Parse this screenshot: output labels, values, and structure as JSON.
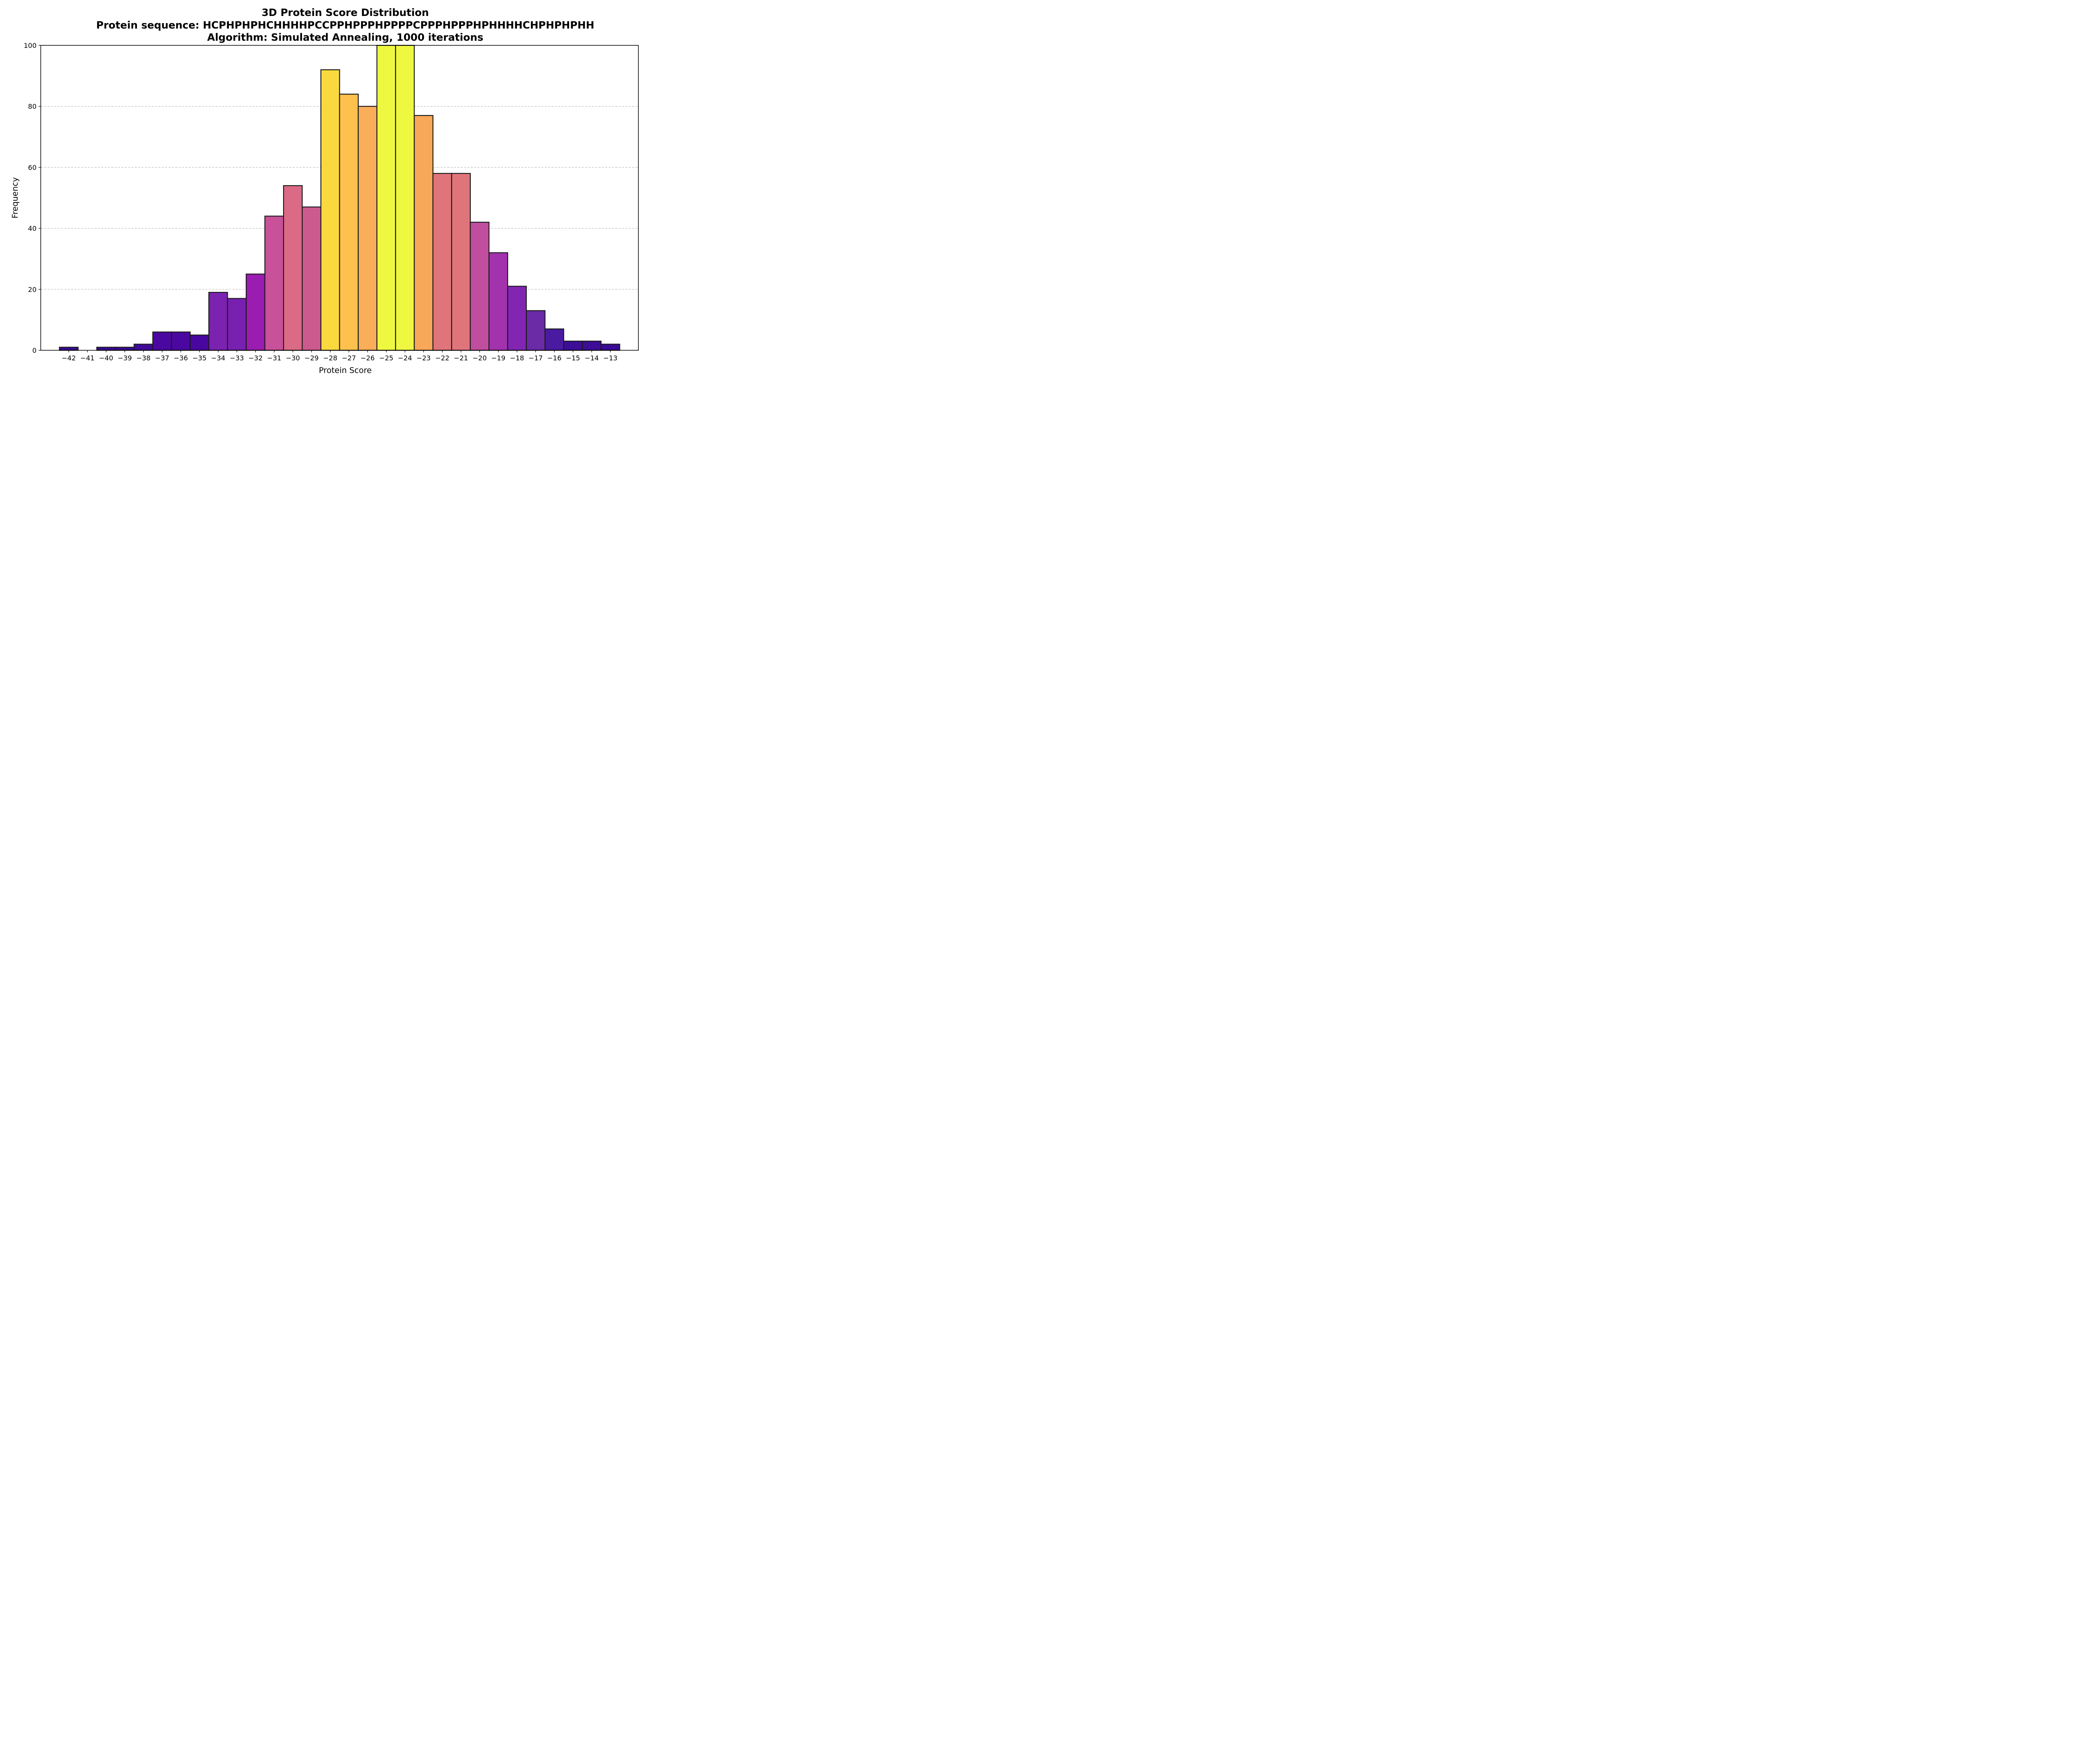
{
  "chart_data": {
    "type": "bar",
    "title": "3D Protein Score Distribution",
    "subtitle_lines": [
      "Protein sequence: HCPHPHPHCHHHHPCCPPHPPPHPPPPCPPPHPPPHPHHHHCHPHPHPHH",
      "Algorithm: Simulated Annealing, 1000 iterations"
    ],
    "xlabel": "Protein Score",
    "ylabel": "Frequency",
    "categories": [
      "−42",
      "−41",
      "−40",
      "−39",
      "−38",
      "−37",
      "−36",
      "−35",
      "−34",
      "−33",
      "−32",
      "−31",
      "−30",
      "−29",
      "−28",
      "−27",
      "−26",
      "−25",
      "−24",
      "−23",
      "−22",
      "−21",
      "−20",
      "−19",
      "−18",
      "−17",
      "−16",
      "−15",
      "−14",
      "−13"
    ],
    "x": [
      -42,
      -41,
      -40,
      -39,
      -38,
      -37,
      -36,
      -35,
      -34,
      -33,
      -32,
      -31,
      -30,
      -29,
      -28,
      -27,
      -26,
      -25,
      -24,
      -23,
      -22,
      -21,
      -20,
      -19,
      -18,
      -17,
      -16,
      -15,
      -14,
      -13
    ],
    "values": [
      1,
      0,
      1,
      1,
      2,
      6,
      6,
      5,
      19,
      17,
      25,
      44,
      54,
      47,
      92,
      84,
      80,
      104,
      103,
      77,
      58,
      58,
      42,
      32,
      21,
      13,
      7,
      3,
      3,
      2
    ],
    "xlim": [
      -43.5,
      -11.5
    ],
    "ylim": [
      0,
      100
    ],
    "yticks": [
      "0",
      "20",
      "40",
      "60",
      "80",
      "100"
    ],
    "ytick_values": [
      0,
      20,
      40,
      60,
      80,
      100
    ],
    "grid": "y-dashed",
    "colormap": "plasma, color by frequency",
    "colors": {
      "edge": "#1a1a1a",
      "grid": "#b0b0b0",
      "bars": [
        "#3a0b94",
        "#3a0b94",
        "#3a0b94",
        "#3a0b94",
        "#3f0a9a",
        "#4b08a0",
        "#4b08a0",
        "#49079f",
        "#7b22b0",
        "#7820b0",
        "#9a1cb0",
        "#c8519a",
        "#da6a85",
        "#cc5a8f",
        "#f9d93d",
        "#fec14e",
        "#fbae59",
        "#eff840",
        "#eff840",
        "#f8a859",
        "#e0747b",
        "#e0747b",
        "#c14d9e",
        "#a233ad",
        "#8125b2",
        "#6b2aa6",
        "#4a1aa0",
        "#3d0d97",
        "#3d0d97",
        "#3a0b94"
      ]
    }
  }
}
